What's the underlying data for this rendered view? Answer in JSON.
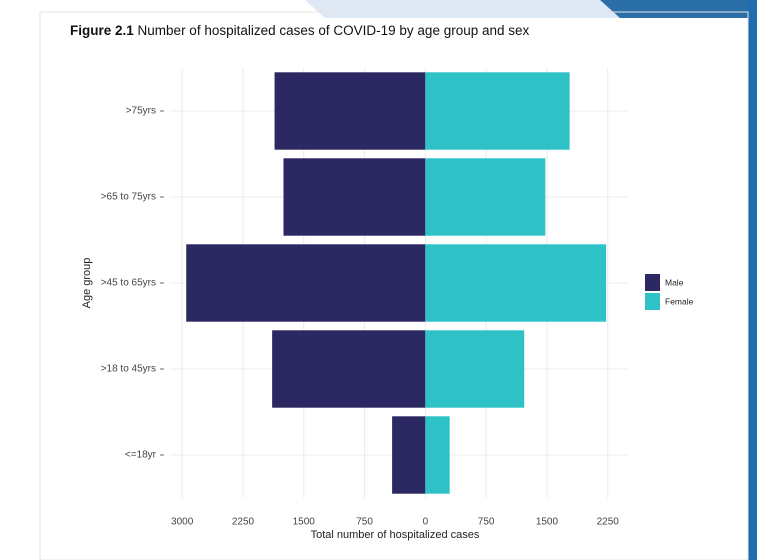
{
  "chart_data": {
    "type": "pyramid",
    "figure_label": "Figure 2.1",
    "title": "Number of hospitalized cases of COVID-19 by age group and sex",
    "x_label": "Total number of hospitalized cases",
    "y_label": "Age group",
    "categories": [
      ">75yrs",
      ">65 to 75yrs",
      ">45 to 65yrs",
      ">18 to 45yrs",
      "<=18yr"
    ],
    "series": [
      {
        "name": "Male",
        "color": "#2b2862",
        "values": [
          -1860,
          -1750,
          -2950,
          -1890,
          -410
        ]
      },
      {
        "name": "Female",
        "color": "#2ec1c6",
        "values": [
          1780,
          1480,
          2230,
          1220,
          300
        ]
      }
    ],
    "xlim": [
      -3150,
      2500
    ],
    "xticks": [
      {
        "value": -3000,
        "label": "3000"
      },
      {
        "value": -2250,
        "label": "2250"
      },
      {
        "value": -1500,
        "label": "1500"
      },
      {
        "value": -750,
        "label": "750"
      },
      0,
      750,
      1500,
      2250
    ],
    "grid": true,
    "legend_position": "right"
  }
}
